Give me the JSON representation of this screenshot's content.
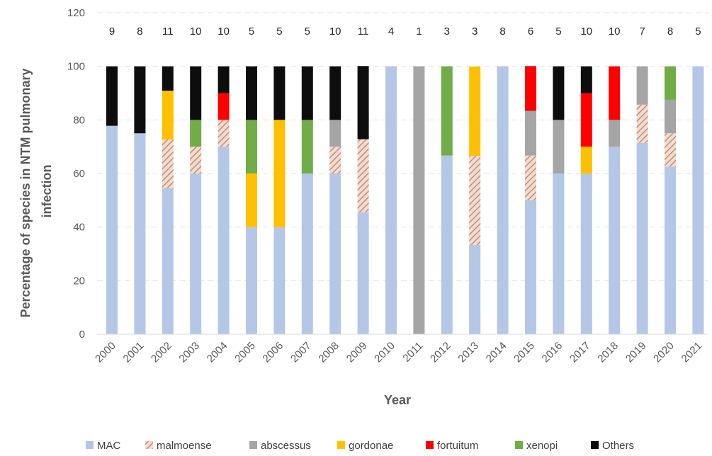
{
  "chart_data": {
    "type": "bar",
    "stacked": true,
    "xlabel": "Year",
    "ylabel": "Percentage of species in NTM pulmonary infection",
    "ylabel_lines": [
      "Percentage of species in NTM pulmonary",
      "infection"
    ],
    "ylim": [
      0,
      120
    ],
    "yticks": [
      0,
      20,
      40,
      60,
      80,
      100,
      120
    ],
    "grid": true,
    "legend_position": "bottom",
    "categories": [
      "2000",
      "2001",
      "2002",
      "2003",
      "2004",
      "2005",
      "2006",
      "2007",
      "2008",
      "2009",
      "2010",
      "2011",
      "2012",
      "2013",
      "2014",
      "2015",
      "2016",
      "2017",
      "2018",
      "2019",
      "2020",
      "2021"
    ],
    "counts": [
      "9",
      "8",
      "11",
      "10",
      "10",
      "5",
      "5",
      "5",
      "10",
      "11",
      "4",
      "1",
      "3",
      "3",
      "8",
      "6",
      "5",
      "10",
      "10",
      "7",
      "8",
      "5"
    ],
    "series": [
      {
        "name": "MAC",
        "color": "#b4c7e7",
        "pattern": "solid",
        "values": [
          77.8,
          75,
          54.5,
          60,
          70,
          40,
          40,
          60,
          60,
          45.5,
          100,
          0,
          66.7,
          33.3,
          100,
          50,
          60,
          60,
          70,
          71.4,
          62.5,
          100
        ]
      },
      {
        "name": "malmoense",
        "color": "#c9a28c",
        "pattern": "hatch",
        "values": [
          0,
          0,
          18.2,
          10,
          10,
          0,
          0,
          0,
          10,
          27.3,
          0,
          0,
          0,
          33.3,
          0,
          16.7,
          0,
          0,
          0,
          14.3,
          12.5,
          0
        ]
      },
      {
        "name": "abscessus",
        "color": "#a5a5a5",
        "pattern": "solid",
        "values": [
          0,
          0,
          0,
          0,
          0,
          0,
          0,
          0,
          10,
          0,
          0,
          100,
          0,
          0,
          0,
          16.7,
          20,
          0,
          10,
          14.3,
          12.5,
          0
        ]
      },
      {
        "name": "gordonae",
        "color": "#ffc000",
        "pattern": "solid",
        "values": [
          0,
          0,
          18.2,
          0,
          0,
          20,
          40,
          0,
          0,
          0,
          0,
          0,
          0,
          33.3,
          0,
          0,
          0,
          10,
          0,
          0,
          0,
          0
        ]
      },
      {
        "name": "fortuitum",
        "color": "#ff0000",
        "pattern": "solid",
        "values": [
          0,
          0,
          0,
          0,
          10,
          0,
          0,
          0,
          0,
          0,
          0,
          0,
          0,
          0,
          0,
          16.7,
          0,
          20,
          20,
          0,
          0,
          0
        ]
      },
      {
        "name": "xenopi",
        "color": "#70ad47",
        "pattern": "solid",
        "values": [
          0,
          0,
          0,
          10,
          0,
          20,
          0,
          20,
          0,
          0,
          0,
          0,
          33.3,
          0,
          0,
          0,
          0,
          0,
          0,
          0,
          12.5,
          0
        ]
      },
      {
        "name": "Others",
        "color": "#0d0d0d",
        "pattern": "solid",
        "values": [
          22.2,
          25,
          9.1,
          20,
          10,
          20,
          20,
          20,
          20,
          27.3,
          0,
          0,
          0,
          0,
          0,
          0,
          20,
          10,
          0,
          0,
          0,
          0
        ]
      }
    ]
  }
}
